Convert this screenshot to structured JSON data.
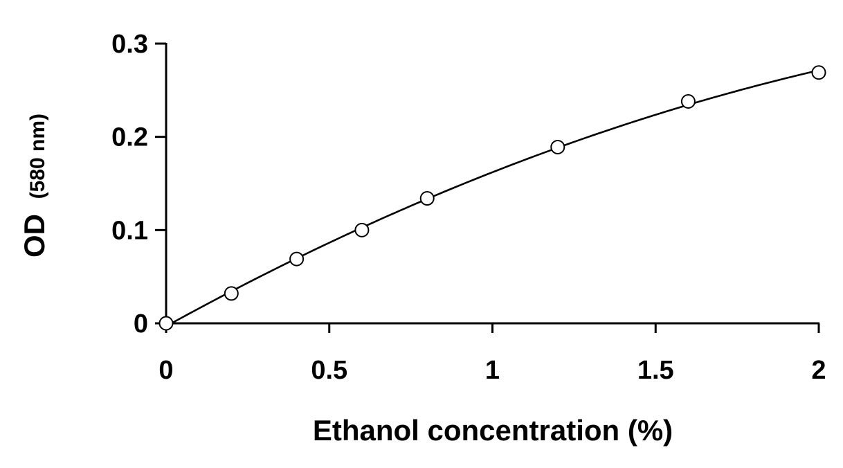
{
  "chart_data": {
    "type": "scatter",
    "title": "",
    "xlabel": "Ethanol concentration (%)",
    "ylabel_main": "OD",
    "ylabel_unit": "(580 nm)",
    "xlim": [
      0,
      2
    ],
    "ylim": [
      0,
      0.3
    ],
    "x_ticks": [
      0,
      0.5,
      1,
      1.5,
      2
    ],
    "x_tick_labels": [
      "0",
      "0.5",
      "1",
      "1.5",
      "2"
    ],
    "y_ticks": [
      0,
      0.1,
      0.2,
      0.3
    ],
    "y_tick_labels": [
      "0",
      "0.1",
      "0.2",
      "0.3"
    ],
    "grid": false,
    "legend": "none",
    "marker": "open-circle",
    "fit_line": "smooth-curve",
    "series": [
      {
        "x": [
          0,
          0.2,
          0.4,
          0.6,
          0.8,
          1.2,
          1.6,
          2.0
        ],
        "y": [
          0.0,
          0.032,
          0.069,
          0.1,
          0.134,
          0.189,
          0.238,
          0.269
        ]
      }
    ],
    "colors": {
      "line": "#000000",
      "marker_fill": "#ffffff"
    }
  }
}
